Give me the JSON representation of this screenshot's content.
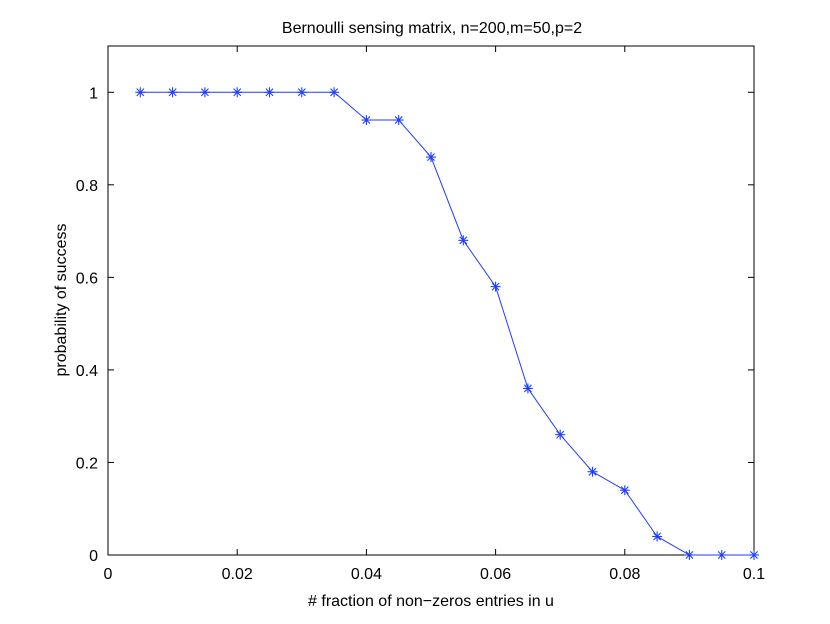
{
  "chart_data": {
    "type": "line",
    "title": "Bernoulli sensing matrix, n=200,m=50,p=2",
    "xlabel": "# fraction of non−zeros entries in u",
    "ylabel": "probability of success",
    "xlim": [
      0,
      0.1
    ],
    "ylim": [
      0,
      1.1
    ],
    "x_ticks": [
      0,
      0.02,
      0.04,
      0.06,
      0.08,
      0.1
    ],
    "x_tick_labels": [
      "0",
      "0.02",
      "0.04",
      "0.06",
      "0.08",
      "0.1"
    ],
    "y_ticks": [
      0,
      0.2,
      0.4,
      0.6,
      0.8,
      1
    ],
    "y_tick_labels": [
      "0",
      "0.2",
      "0.4",
      "0.6",
      "0.8",
      "1"
    ],
    "grid": false,
    "series": [
      {
        "color": "#1f3fff",
        "marker": "asterisk",
        "x": [
          0.005,
          0.01,
          0.015,
          0.02,
          0.025,
          0.03,
          0.035,
          0.04,
          0.045,
          0.05,
          0.055,
          0.06,
          0.065,
          0.07,
          0.075,
          0.08,
          0.085,
          0.09,
          0.095,
          0.1
        ],
        "y": [
          1,
          1,
          1,
          1,
          1,
          1,
          1,
          0.94,
          0.94,
          0.86,
          0.68,
          0.58,
          0.36,
          0.26,
          0.18,
          0.14,
          0.04,
          0,
          0,
          0
        ]
      }
    ]
  }
}
